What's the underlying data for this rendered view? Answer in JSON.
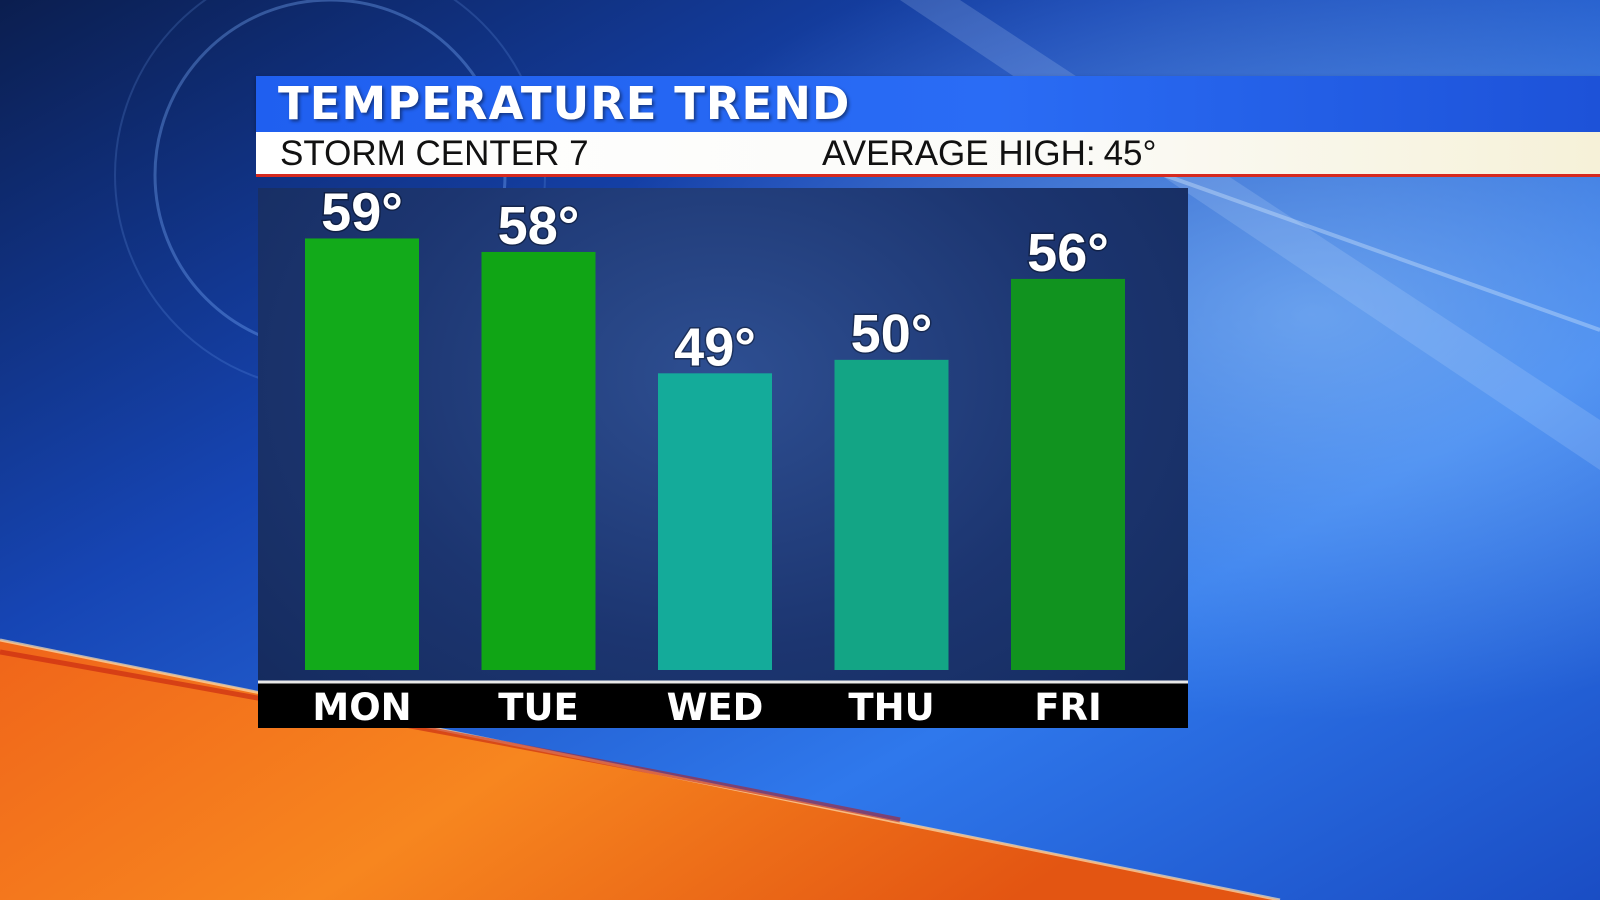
{
  "header": {
    "title": "TEMPERATURE TREND",
    "station": "STORM CENTER 7",
    "average_label": "AVERAGE HIGH:",
    "average_value": "45°"
  },
  "colors": {
    "title_bar": "#2a6cf5",
    "sub_bar": "#ffffff",
    "accent_line": "#d62a1f",
    "day_strip": "#000000"
  },
  "chart_data": {
    "type": "bar",
    "categories": [
      "MON",
      "TUE",
      "WED",
      "THU",
      "FRI"
    ],
    "values": [
      59,
      58,
      49,
      50,
      56
    ],
    "value_labels": [
      "59°",
      "58°",
      "49°",
      "50°",
      "56°"
    ],
    "bar_colors": [
      "#12aa1a",
      "#10a515",
      "#14ab9a",
      "#13a585",
      "#11931f"
    ],
    "ylim": [
      27,
      62
    ],
    "grid": false,
    "title": "",
    "xlabel": "",
    "ylabel": ""
  }
}
